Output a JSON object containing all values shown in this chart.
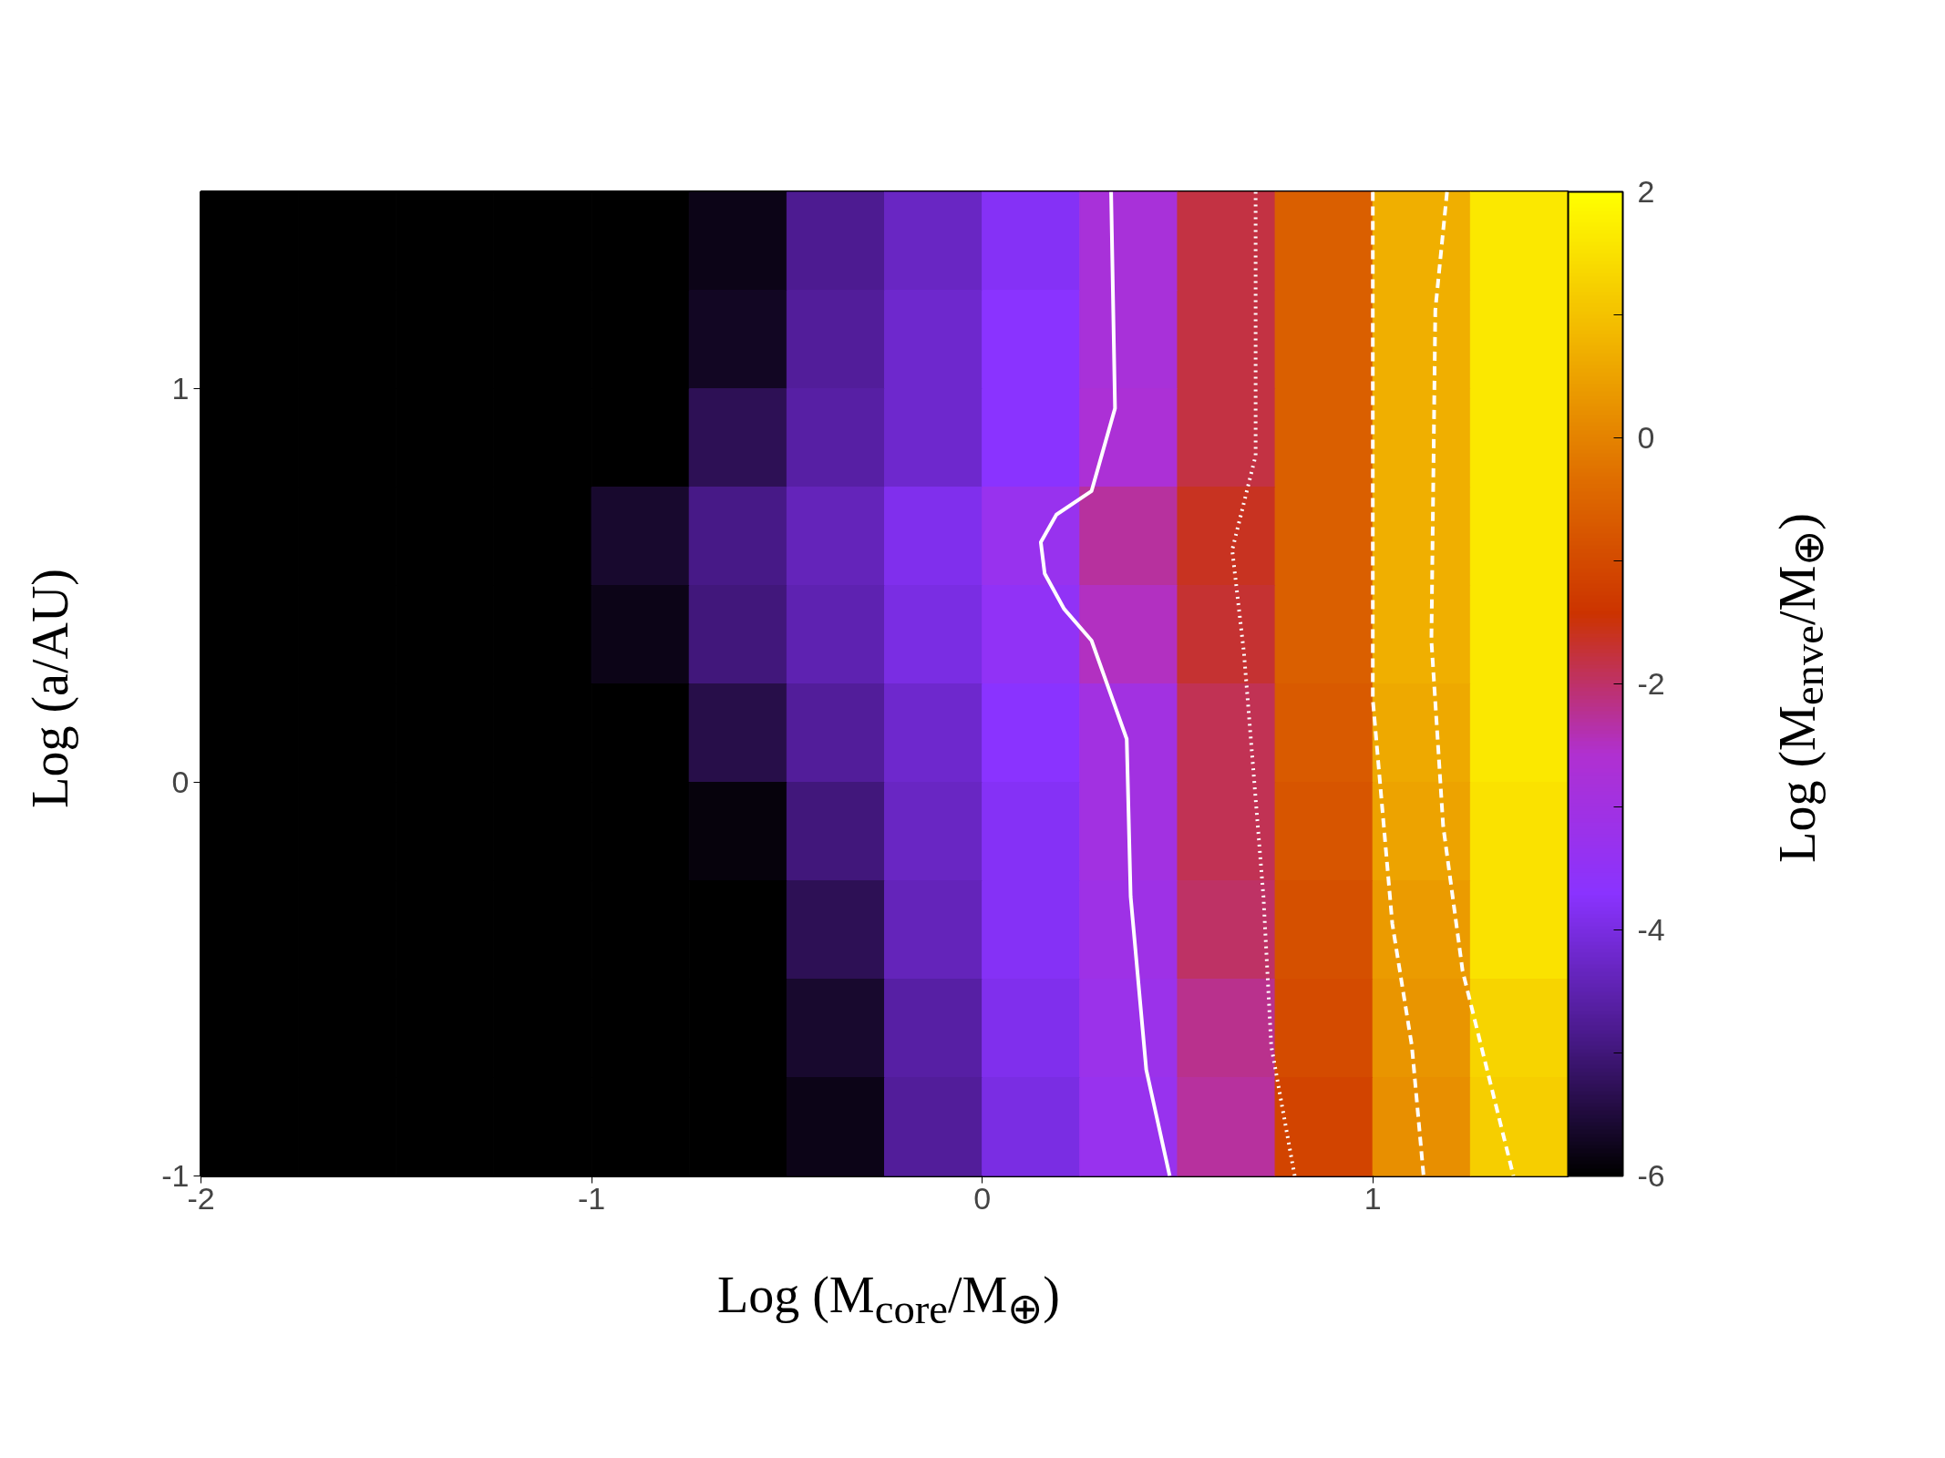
{
  "chart_data": {
    "type": "heatmap",
    "xlabel": "Log (M$_{core}$/M$_{⊕}$)",
    "ylabel": "Log (a/AU)",
    "clabel": "Log (M$_{enve}$/M$_{⊕}$)",
    "x": [
      -1.875,
      -1.625,
      -1.375,
      -1.125,
      -0.875,
      -0.625,
      -0.375,
      -0.125,
      0.125,
      0.375,
      0.625,
      0.875,
      1.125,
      1.375
    ],
    "y": [
      1.375,
      1.125,
      0.875,
      0.625,
      0.375,
      0.125,
      -0.125,
      -0.375,
      -0.625,
      -0.875
    ],
    "cells": [
      [
        -6,
        -6,
        -6,
        -6,
        -6,
        -5.8,
        -4.8,
        -4.3,
        -3.8,
        -2.8,
        -1.8,
        -0.6,
        0.7,
        1.6
      ],
      [
        -6,
        -6,
        -6,
        -6,
        -6,
        -5.7,
        -4.7,
        -4.2,
        -3.7,
        -2.8,
        -1.8,
        -0.6,
        0.7,
        1.6
      ],
      [
        -6,
        -6,
        -6,
        -6,
        -6,
        -5.3,
        -4.6,
        -4.2,
        -3.7,
        -2.7,
        -1.8,
        -0.6,
        0.7,
        1.6
      ],
      [
        -6,
        -6,
        -6,
        -6,
        -5.6,
        -4.9,
        -4.4,
        -3.9,
        -3.3,
        -2.3,
        -1.6,
        -0.6,
        0.7,
        1.6
      ],
      [
        -6,
        -6,
        -6,
        -6,
        -5.8,
        -5.0,
        -4.5,
        -4.0,
        -3.5,
        -2.5,
        -1.7,
        -0.6,
        0.7,
        1.6
      ],
      [
        -6,
        -6,
        -6,
        -6,
        -6,
        -5.4,
        -4.7,
        -4.2,
        -3.7,
        -3.0,
        -1.9,
        -0.7,
        0.6,
        1.6
      ],
      [
        -6,
        -6,
        -6,
        -6,
        -6,
        -5.9,
        -5.0,
        -4.3,
        -3.8,
        -3.0,
        -1.9,
        -0.8,
        0.5,
        1.5
      ],
      [
        -6,
        -6,
        -6,
        -6,
        -6,
        -6,
        -5.3,
        -4.4,
        -3.8,
        -3.1,
        -2.0,
        -0.9,
        0.4,
        1.5
      ],
      [
        -6,
        -6,
        -6,
        -6,
        -6,
        -6,
        -5.6,
        -4.6,
        -3.9,
        -3.2,
        -2.2,
        -1.0,
        0.3,
        1.3
      ],
      [
        -6,
        -6,
        -6,
        -6,
        -6,
        -6,
        -5.8,
        -4.7,
        -4.0,
        -3.3,
        -2.3,
        -1.1,
        0.2,
        1.2
      ]
    ],
    "colors": [
      "#000000",
      "#4a1a8c",
      "#8a33ff",
      "#b030d0",
      "#cc3300",
      "#e07000",
      "#f2b800",
      "#ffff00"
    ],
    "clim": [
      -6,
      2
    ],
    "cticks": [
      -6,
      {
        "value": -5,
        "label": null
      },
      -4,
      {
        "value": -3,
        "label": null
      },
      -2,
      {
        "value": -1,
        "label": null
      },
      0,
      {
        "value": 1,
        "label": null
      },
      2
    ],
    "xlim": [
      -2,
      1.5
    ],
    "ylim": [
      -1,
      1.5
    ],
    "xticks": [
      -2,
      -1,
      0,
      1
    ],
    "yticks": [
      -1,
      0,
      1
    ],
    "grid": false,
    "series": [
      {
        "type": "line",
        "color": "#ffffff",
        "line_style": "solid",
        "x": [
          0.33,
          0.34,
          0.28,
          0.19,
          0.15,
          0.16,
          0.21,
          0.28,
          0.37,
          0.38,
          0.42,
          0.48
        ],
        "values": [
          1.5,
          0.95,
          0.74,
          0.68,
          0.61,
          0.53,
          0.44,
          0.36,
          0.11,
          -0.29,
          -0.73,
          -1
        ]
      },
      {
        "type": "line",
        "color": "#ffffff",
        "line_style": "dotted",
        "x": [
          0.7,
          0.7,
          0.64,
          0.67,
          0.72,
          0.74,
          0.8
        ],
        "values": [
          1.5,
          0.83,
          0.59,
          0.33,
          -0.29,
          -0.67,
          -1
        ]
      },
      {
        "type": "line",
        "color": "#ffffff",
        "line_style": "dashed",
        "x": [
          1.0,
          1.0,
          1.05,
          1.1,
          1.13
        ],
        "values": [
          1.5,
          0.21,
          -0.36,
          -0.67,
          -1
        ]
      },
      {
        "type": "line",
        "color": "#ffffff",
        "line_style": "dashed",
        "x": [
          1.19,
          1.16,
          1.15,
          1.18,
          1.23,
          1.36
        ],
        "values": [
          1.5,
          1.2,
          0.36,
          -0.11,
          -0.48,
          -1
        ]
      }
    ]
  }
}
